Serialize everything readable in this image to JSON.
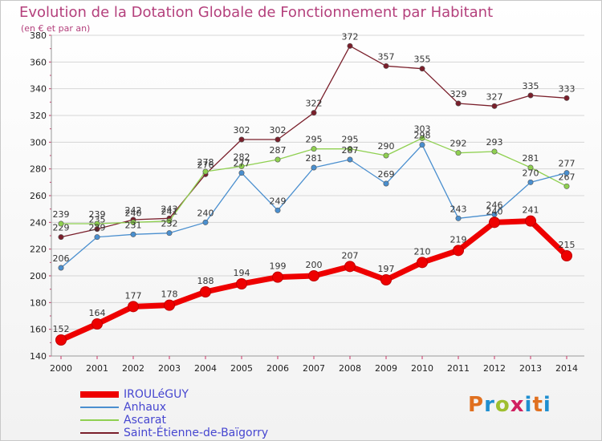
{
  "title": "Evolution de la Dotation Globale de Fonctionnement par Habitant",
  "subtitle": "(en € et par an)",
  "logo": {
    "text": "Proxiti",
    "letter_colors": [
      "#e07020",
      "#1f8fd0",
      "#9fbf2f",
      "#d02060",
      "#1f8fd0",
      "#e07020",
      "#1f8fd0"
    ]
  },
  "chart_data": {
    "type": "line",
    "x": [
      "2000",
      "2001",
      "2002",
      "2003",
      "2004",
      "2005",
      "2006",
      "2007",
      "2008",
      "2009",
      "2010",
      "2011",
      "2012",
      "2013",
      "2014"
    ],
    "ylim": [
      140,
      380
    ],
    "yticks": [
      140,
      160,
      180,
      200,
      220,
      240,
      260,
      280,
      300,
      320,
      340,
      360,
      380
    ],
    "grid": "horizontal",
    "legend_position": "bottom-left",
    "series": [
      {
        "name": "Saint-Étienne-de-Baïgorry",
        "color": "#7a1f2b",
        "values": [
          229,
          235,
          242,
          243,
          276,
          302,
          302,
          322,
          372,
          357,
          355,
          329,
          327,
          335,
          333
        ]
      },
      {
        "name": "Ascarat",
        "color": "#8fd050",
        "values": [
          239,
          239,
          240,
          241,
          278,
          282,
          287,
          295,
          295,
          290,
          303,
          292,
          293,
          281,
          267
        ]
      },
      {
        "name": "Anhaux",
        "color": "#4a8fcf",
        "values": [
          206,
          229,
          231,
          232,
          240,
          277,
          249,
          281,
          287,
          269,
          298,
          243,
          246,
          270,
          277
        ]
      },
      {
        "name": "IROULéGUY",
        "color": "#ee0000",
        "values": [
          152,
          164,
          177,
          178,
          188,
          194,
          199,
          200,
          207,
          197,
          210,
          219,
          240,
          241,
          215
        ]
      }
    ],
    "legend_order": [
      "IROULéGUY",
      "Anhaux",
      "Ascarat",
      "Saint-Étienne-de-Baïgorry"
    ]
  }
}
